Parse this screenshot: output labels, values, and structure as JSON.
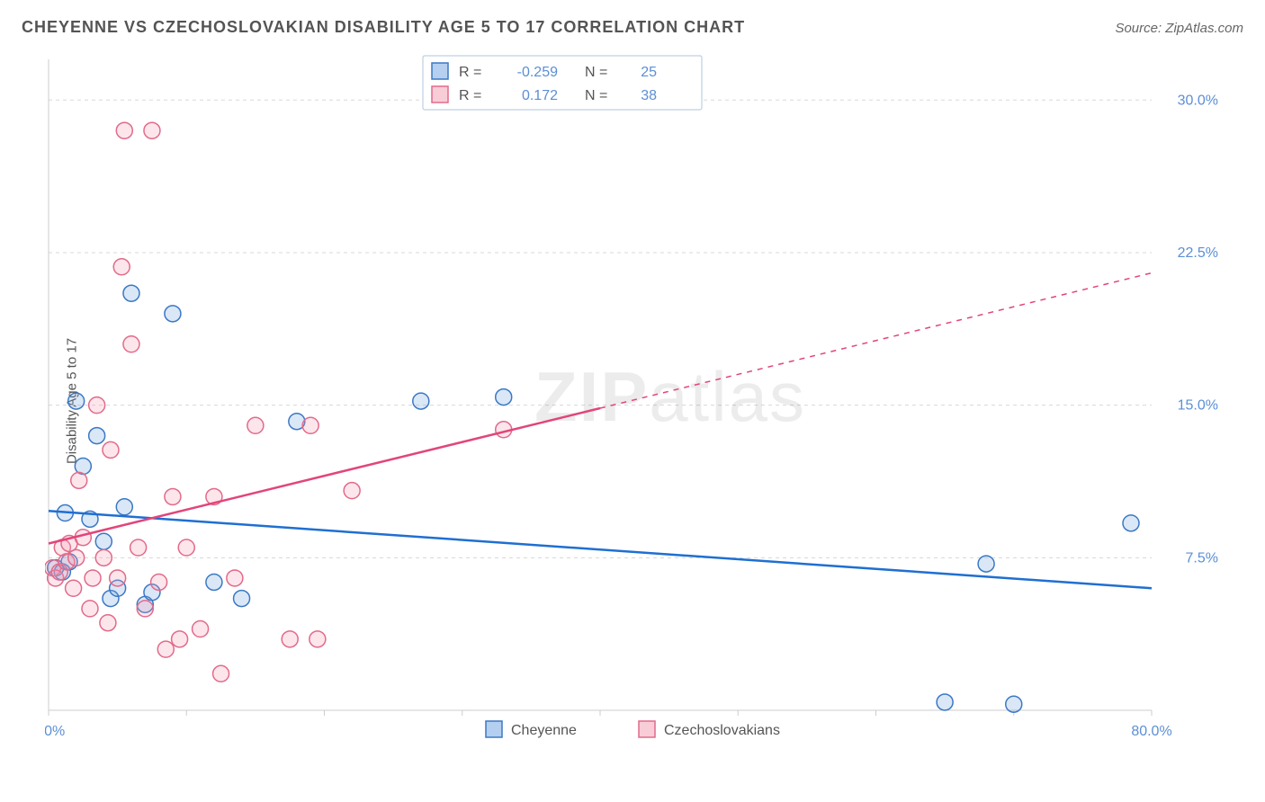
{
  "title": "CHEYENNE VS CZECHOSLOVAKIAN DISABILITY AGE 5 TO 17 CORRELATION CHART",
  "source": "Source: ZipAtlas.com",
  "y_axis_label": "Disability Age 5 to 17",
  "watermark_bold": "ZIP",
  "watermark_thin": "atlas",
  "chart": {
    "type": "scatter",
    "background_color": "#ffffff",
    "grid_color": "#d8d8d8",
    "axis_color": "#cccccc",
    "xlim": [
      0,
      80
    ],
    "ylim": [
      0,
      32
    ],
    "xticks": [
      0,
      10,
      20,
      30,
      40,
      50,
      60,
      70,
      80
    ],
    "xtick_labels": {
      "0": "0.0%",
      "80": "80.0%"
    },
    "yticks": [
      0,
      7.5,
      15.0,
      22.5,
      30.0
    ],
    "ytick_labels": {
      "7.5": "7.5%",
      "15.0": "15.0%",
      "22.5": "22.5%",
      "30.0": "30.0%"
    },
    "tick_label_color": "#5b8fd6",
    "tick_label_fontsize": 16,
    "marker_radius": 9,
    "marker_fill_opacity": 0.25,
    "marker_stroke_width": 1.5,
    "trend_line_width": 2.5,
    "trend_dash_threshold_x": 40
  },
  "series": [
    {
      "name": "Cheyenne",
      "color": "#6aa0e0",
      "stroke": "#3b78c4",
      "trend_color": "#1f6fd1",
      "R": "-0.259",
      "N": "25",
      "points": [
        [
          0.5,
          7.0
        ],
        [
          1.0,
          6.8
        ],
        [
          1.2,
          9.7
        ],
        [
          1.5,
          7.3
        ],
        [
          2.0,
          15.2
        ],
        [
          2.5,
          12.0
        ],
        [
          3.0,
          9.4
        ],
        [
          3.5,
          13.5
        ],
        [
          4.0,
          8.3
        ],
        [
          4.5,
          5.5
        ],
        [
          5.0,
          6.0
        ],
        [
          5.5,
          10.0
        ],
        [
          6.0,
          20.5
        ],
        [
          7.0,
          5.2
        ],
        [
          7.5,
          5.8
        ],
        [
          9.0,
          19.5
        ],
        [
          12.0,
          6.3
        ],
        [
          14.0,
          5.5
        ],
        [
          18.0,
          14.2
        ],
        [
          27.0,
          15.2
        ],
        [
          33.0,
          15.4
        ],
        [
          65.0,
          0.4
        ],
        [
          68.0,
          7.2
        ],
        [
          70.0,
          0.3
        ],
        [
          78.5,
          9.2
        ]
      ],
      "trend": {
        "x1": 0,
        "y1": 9.8,
        "x2": 80,
        "y2": 6.0
      }
    },
    {
      "name": "Czechoslovakians",
      "color": "#f29bb2",
      "stroke": "#e26a8a",
      "trend_color": "#e2457a",
      "R": "0.172",
      "N": "38",
      "points": [
        [
          0.3,
          7.0
        ],
        [
          0.5,
          6.5
        ],
        [
          0.8,
          6.8
        ],
        [
          1.0,
          8.0
        ],
        [
          1.3,
          7.3
        ],
        [
          1.5,
          8.2
        ],
        [
          1.8,
          6.0
        ],
        [
          2.0,
          7.5
        ],
        [
          2.2,
          11.3
        ],
        [
          2.5,
          8.5
        ],
        [
          3.0,
          5.0
        ],
        [
          3.2,
          6.5
        ],
        [
          3.5,
          15.0
        ],
        [
          4.0,
          7.5
        ],
        [
          4.3,
          4.3
        ],
        [
          4.5,
          12.8
        ],
        [
          5.0,
          6.5
        ],
        [
          5.3,
          21.8
        ],
        [
          5.5,
          28.5
        ],
        [
          6.0,
          18.0
        ],
        [
          6.5,
          8.0
        ],
        [
          7.0,
          5.0
        ],
        [
          7.5,
          28.5
        ],
        [
          8.0,
          6.3
        ],
        [
          8.5,
          3.0
        ],
        [
          9.0,
          10.5
        ],
        [
          9.5,
          3.5
        ],
        [
          10.0,
          8.0
        ],
        [
          11.0,
          4.0
        ],
        [
          12.0,
          10.5
        ],
        [
          12.5,
          1.8
        ],
        [
          13.5,
          6.5
        ],
        [
          15.0,
          14.0
        ],
        [
          17.5,
          3.5
        ],
        [
          19.0,
          14.0
        ],
        [
          19.5,
          3.5
        ],
        [
          22.0,
          10.8
        ],
        [
          33.0,
          13.8
        ]
      ],
      "trend": {
        "x1": 0,
        "y1": 8.2,
        "x2": 80,
        "y2": 21.5
      }
    }
  ],
  "legend_top": {
    "border_color": "#b0c4de",
    "background": "#ffffff",
    "R_label": "R =",
    "N_label": "N ="
  },
  "legend_bottom": {
    "items": [
      "Cheyenne",
      "Czechoslovakians"
    ]
  }
}
